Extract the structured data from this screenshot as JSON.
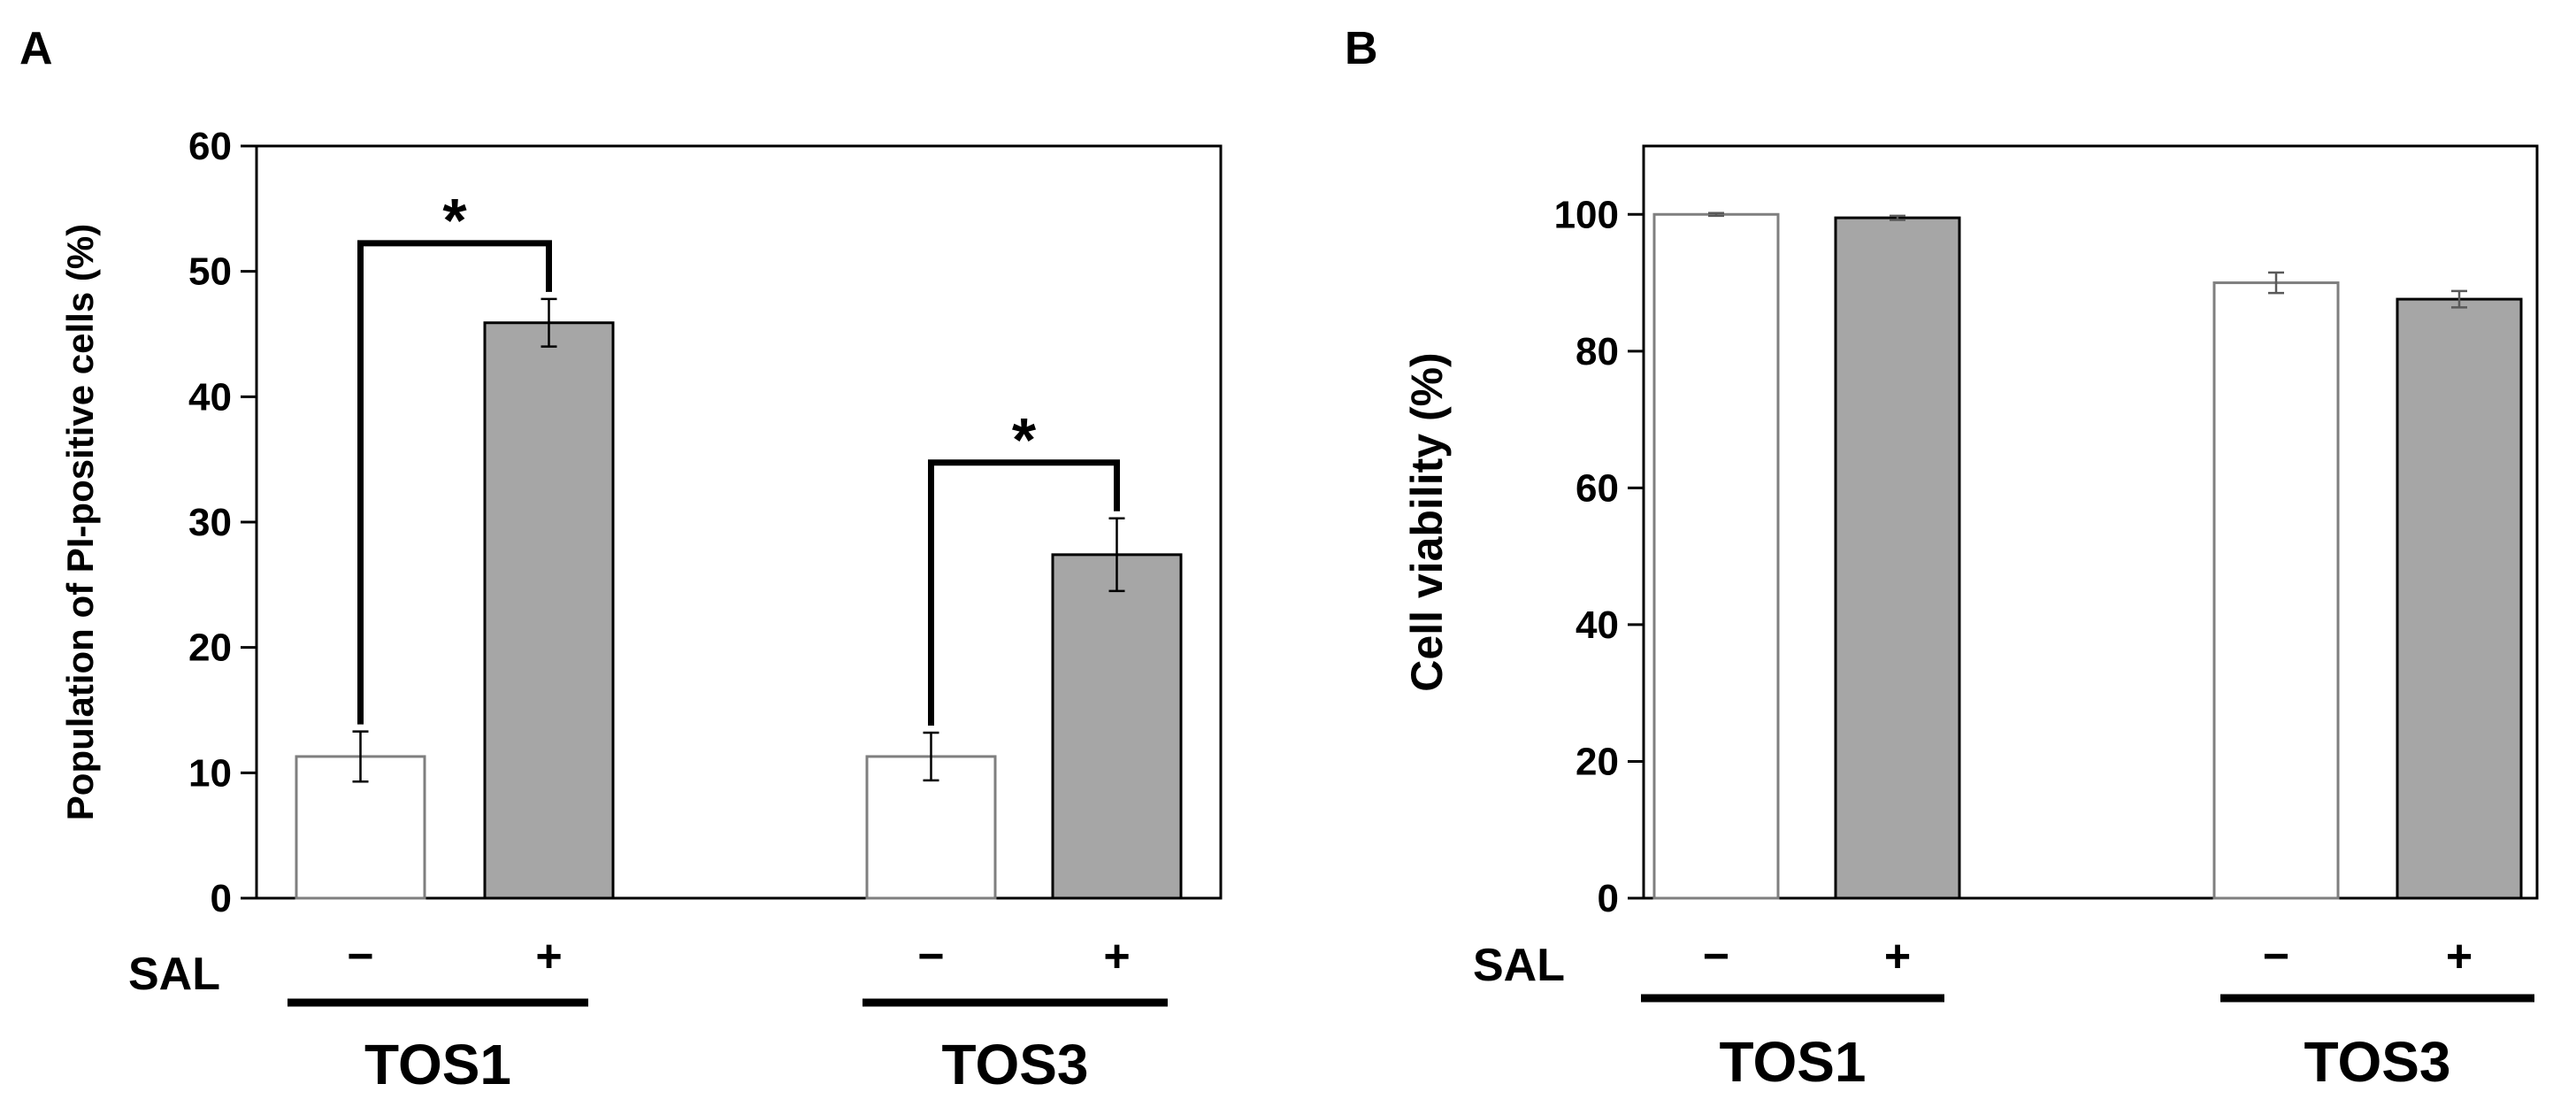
{
  "colors": {
    "minus_fill": "#ffffff",
    "plus_fill": "#a6a6a6",
    "axis": "#000000",
    "bar_stroke_minus": "#7f7f7f",
    "bar_stroke_plus": "#000000"
  },
  "chart_data": [
    {
      "type": "bar",
      "panel_label": "A",
      "title": "",
      "ylabel": "Population of PI-positive cells (%)",
      "xlabel": "",
      "ylim": [
        0,
        60
      ],
      "yticks": [
        0,
        10,
        20,
        30,
        40,
        50,
        60
      ],
      "treatment_label": "SAL",
      "treatment_levels": [
        "−",
        "+"
      ],
      "groups": [
        "TOS1",
        "TOS3"
      ],
      "series": [
        {
          "name": "−",
          "values": [
            11.3,
            11.3
          ],
          "errors": [
            2.0,
            1.9
          ]
        },
        {
          "name": "+",
          "values": [
            45.9,
            27.4
          ],
          "errors": [
            1.9,
            2.9
          ]
        }
      ],
      "annotations": [
        {
          "group": "TOS1",
          "text": "*",
          "type": "significance"
        },
        {
          "group": "TOS3",
          "text": "*",
          "type": "significance"
        }
      ]
    },
    {
      "type": "bar",
      "panel_label": "B",
      "title": "",
      "ylabel": "Cell viability (%)",
      "xlabel": "",
      "ylim": [
        0,
        110
      ],
      "yticks": [
        0,
        20,
        40,
        60,
        80,
        100
      ],
      "treatment_label": "SAL",
      "treatment_levels": [
        "−",
        "+"
      ],
      "groups": [
        "TOS1",
        "TOS3"
      ],
      "series": [
        {
          "name": "−",
          "values": [
            100,
            90
          ],
          "errors": [
            0.2,
            1.5
          ]
        },
        {
          "name": "+",
          "values": [
            99.5,
            87.6
          ],
          "errors": [
            0.3,
            1.2
          ]
        }
      ],
      "annotations": []
    }
  ]
}
